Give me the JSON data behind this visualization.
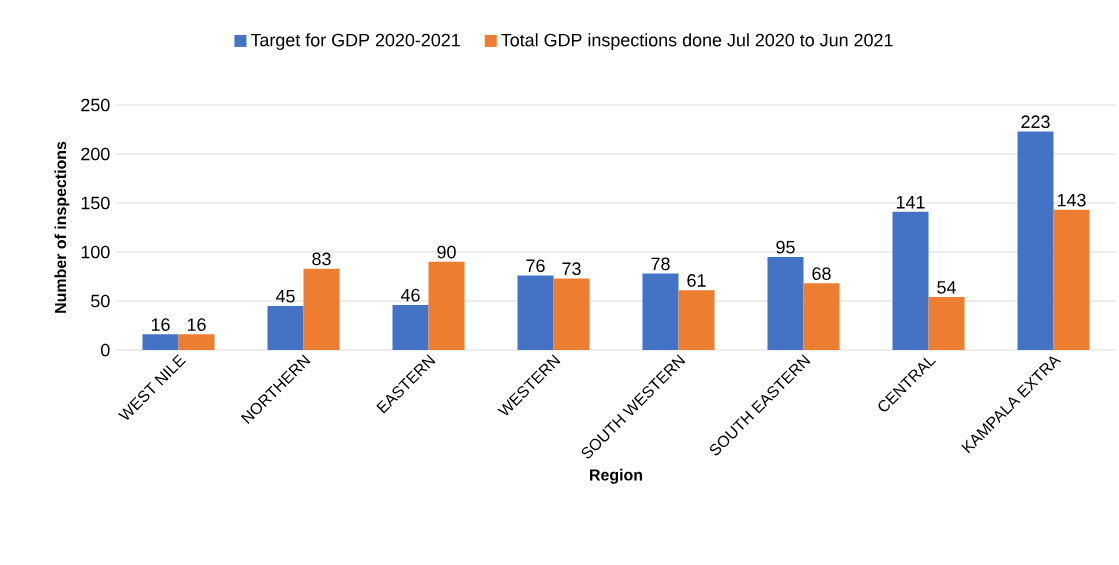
{
  "chart_data": {
    "type": "bar",
    "xlabel": "Region",
    "ylabel": "Number of inspections",
    "categories": [
      "WEST NILE",
      "NORTHERN",
      "EASTERN",
      "WESTERN",
      "SOUTH WESTERN",
      "SOUTH EASTERN",
      "CENTRAL",
      "KAMPALA EXTRA"
    ],
    "series": [
      {
        "name": "Target for GDP 2020-2021",
        "color": "#4472c4",
        "values": [
          16,
          45,
          46,
          76,
          78,
          95,
          141,
          223
        ]
      },
      {
        "name": "Total GDP inspections done Jul 2020 to Jun 2021",
        "color": "#ed7d31",
        "values": [
          16,
          83,
          90,
          73,
          61,
          68,
          54,
          143
        ]
      }
    ],
    "ylim": [
      0,
      250
    ],
    "yticks": [
      0,
      50,
      100,
      150,
      200,
      250
    ],
    "grid": "y",
    "legend": "top",
    "data_labels": true
  }
}
